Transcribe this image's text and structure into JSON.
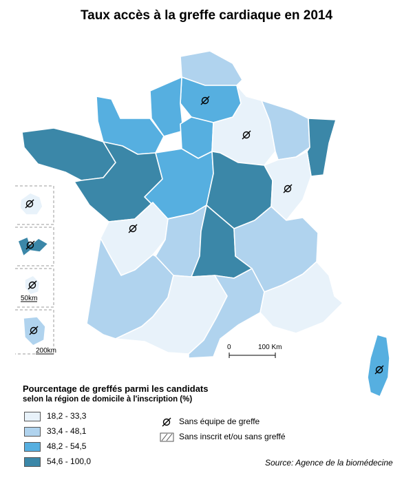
{
  "title": "Taux accès à la greffe cardiaque en 2014",
  "legend": {
    "title": "Pourcentage de greffés parmi les candidats",
    "subtitle": "selon la région de domicile à l'inscription (%)",
    "classes": [
      {
        "label": "18,2 - 33,3",
        "color": "#e8f2fa"
      },
      {
        "label": "33,4 - 48,1",
        "color": "#b0d3ee"
      },
      {
        "label": "48,2 - 54,5",
        "color": "#56afe0"
      },
      {
        "label": "54,6 - 100,0",
        "color": "#3b87a8"
      }
    ],
    "symbols": [
      {
        "label": "Sans équipe de greffe",
        "icon": "null-set-icon"
      },
      {
        "label": "Sans inscrit et/ou sans greffé",
        "icon": "hatched-box-icon"
      }
    ]
  },
  "scale": {
    "start": "0",
    "end": "100 Km"
  },
  "insets": {
    "scale_small": "50km",
    "scale_large": "200km"
  },
  "source": "Source: Agence de la biomédecine"
}
